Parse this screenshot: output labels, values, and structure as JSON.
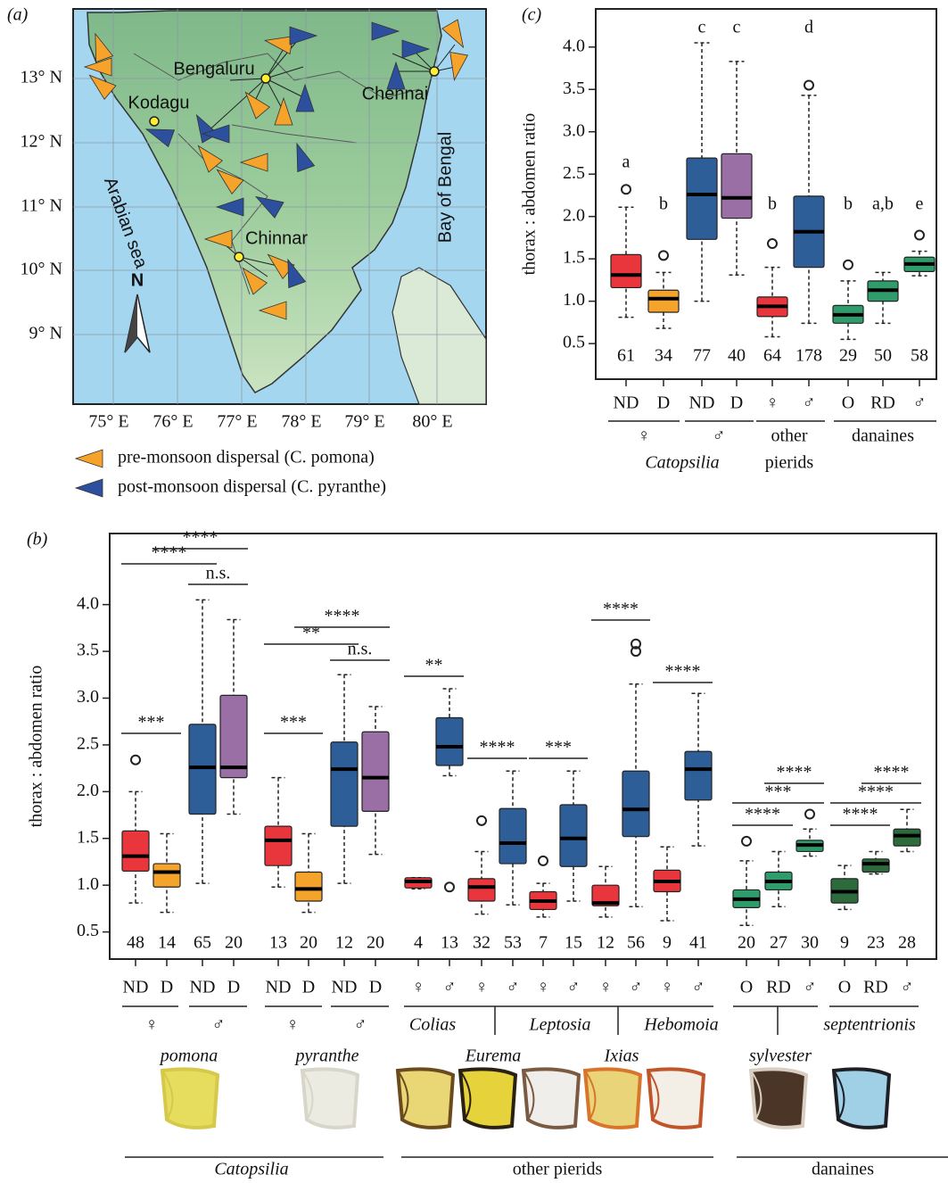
{
  "map": {
    "panel": "(a)",
    "places": [
      "Bengaluru",
      "Kodagu",
      "Chennai",
      "Chinnar"
    ],
    "seas": [
      "Arabian sea",
      "Bay of Bengal"
    ],
    "north": "N",
    "lat_labels": [
      "13° N",
      "12° N",
      "11° N",
      "10° N",
      "9° N"
    ],
    "lon_labels": [
      "75° E",
      "76° E",
      "77° E",
      "78° E",
      "79° E",
      "80° E"
    ],
    "legend": [
      {
        "label": "pre-monsoon dispersal (C. pomona)",
        "color": "#f5a32a"
      },
      {
        "label": "post-monsoon dispersal (C. pyranthe)",
        "color": "#2c4f9e"
      }
    ]
  },
  "chart_data": [
    {
      "type": "box",
      "panel": "(c)",
      "ylabel": "thorax : abdomen ratio",
      "ylim": [
        0.08,
        4.45
      ],
      "yticks": [
        0.5,
        {
          "value": 1,
          "label": "1.0"
        },
        1.5,
        {
          "value": 2,
          "label": "2.0"
        },
        2.5,
        {
          "value": 3,
          "label": "3.0"
        },
        3.5,
        {
          "value": 4,
          "label": "4.0"
        }
      ],
      "categories": [
        "ND",
        "D",
        "ND",
        "D",
        "♀",
        "♂",
        "O",
        "RD",
        "♂"
      ],
      "colors": [
        "#e8363c",
        "#f4a42a",
        "#2e5e98",
        "#9a6fa6",
        "#e8363c",
        "#2e5e98",
        "#2f9c6b",
        "#2f9c6b",
        "#2f9c6b"
      ],
      "min": [
        0.81,
        0.68,
        1.0,
        1.31,
        0.58,
        0.74,
        0.55,
        0.74,
        1.3
      ],
      "q1": [
        1.16,
        0.87,
        1.73,
        1.98,
        0.82,
        1.4,
        0.74,
        1.0,
        1.35
      ],
      "median": [
        1.31,
        1.03,
        2.26,
        2.22,
        0.94,
        1.82,
        0.84,
        1.13,
        1.44
      ],
      "q3": [
        1.55,
        1.13,
        2.69,
        2.74,
        1.05,
        2.24,
        0.95,
        1.24,
        1.52
      ],
      "max": [
        2.11,
        1.34,
        4.05,
        3.83,
        1.4,
        3.43,
        1.24,
        1.34,
        1.59
      ],
      "outliers": [
        [
          2.32
        ],
        [
          1.54
        ],
        [],
        [],
        [
          1.68
        ],
        [
          3.55
        ],
        [
          1.43
        ],
        [],
        [
          1.78
        ]
      ],
      "n": [
        61,
        34,
        77,
        40,
        64,
        178,
        29,
        50,
        58
      ],
      "letters": [
        "a",
        "b",
        "c",
        "c",
        "b",
        "d",
        "b",
        "a,b",
        "e"
      ],
      "group_labels": [
        [
          "♀"
        ],
        [
          "♂"
        ],
        [
          "other",
          "pierids"
        ],
        [
          "danaines"
        ]
      ],
      "genus": "Catopsilia"
    },
    {
      "type": "box",
      "panel": "(b)",
      "ylabel": "thorax : abdomen ratio",
      "ylim": [
        0.21,
        4.76
      ],
      "yticks": [
        0.5,
        {
          "value": 1,
          "label": "1.0"
        },
        1.5,
        {
          "value": 2,
          "label": "2.0"
        },
        2.5,
        {
          "value": 3,
          "label": "3.0"
        },
        3.5,
        {
          "value": 4,
          "label": "4.0"
        }
      ],
      "categories": [
        "ND",
        "D",
        "ND",
        "D",
        "ND",
        "D",
        "ND",
        "D",
        "♀",
        "♂",
        "♀",
        "♂",
        "♀",
        "♂",
        "♀",
        "♂",
        "♀",
        "♂",
        "O",
        "RD",
        "♂",
        "O",
        "RD",
        "♂"
      ],
      "colors": [
        "#e8363c",
        "#f4a42a",
        "#2e5e98",
        "#9a6fa6",
        "#e8363c",
        "#f4a42a",
        "#2e5e98",
        "#9a6fa6",
        "#e8363c",
        "#2e5e98",
        "#e8363c",
        "#2e5e98",
        "#e8363c",
        "#2e5e98",
        "#e8363c",
        "#2e5e98",
        "#e8363c",
        "#2e5e98",
        "#2f9c6b",
        "#2f9c6b",
        "#2f9c6b",
        "#2d6b3d",
        "#2d6b3d",
        "#2d6b3d"
      ],
      "min": [
        0.81,
        0.71,
        1.02,
        1.76,
        0.98,
        0.71,
        1.02,
        1.33,
        0.96,
        2.17,
        0.69,
        0.79,
        0.66,
        0.83,
        0.66,
        0.77,
        0.62,
        1.42,
        0.57,
        0.77,
        1.31,
        0.74,
        1.12,
        1.36
      ],
      "q1": [
        1.15,
        0.98,
        1.76,
        2.15,
        1.21,
        0.83,
        1.63,
        1.79,
        0.97,
        2.28,
        0.83,
        1.23,
        0.74,
        1.2,
        0.78,
        1.52,
        0.93,
        1.91,
        0.76,
        0.95,
        1.36,
        0.81,
        1.14,
        1.42
      ],
      "median": [
        1.31,
        1.14,
        2.26,
        2.26,
        1.48,
        0.96,
        2.24,
        2.15,
        1.04,
        2.48,
        0.98,
        1.45,
        0.83,
        1.5,
        0.81,
        1.81,
        1.04,
        2.24,
        0.85,
        1.04,
        1.43,
        0.93,
        1.23,
        1.53
      ],
      "q3": [
        1.58,
        1.23,
        2.72,
        3.03,
        1.63,
        1.14,
        2.53,
        2.64,
        1.08,
        2.79,
        1.07,
        1.82,
        0.93,
        1.86,
        1.0,
        2.22,
        1.16,
        2.43,
        0.95,
        1.14,
        1.48,
        1.07,
        1.28,
        1.6
      ],
      "max": [
        2.0,
        1.55,
        4.05,
        3.84,
        2.15,
        1.55,
        3.25,
        2.91,
        1.08,
        3.1,
        1.36,
        2.22,
        1.02,
        2.22,
        1.2,
        3.15,
        1.41,
        3.05,
        1.26,
        1.36,
        1.6,
        1.21,
        1.36,
        1.81
      ],
      "outliers": [
        [
          2.34
        ],
        [],
        [],
        [],
        [],
        [],
        [],
        [],
        [],
        [
          0.98
        ],
        [
          1.69
        ],
        [],
        [
          1.26
        ],
        [],
        [],
        [
          3.58,
          3.5
        ],
        [],
        [],
        [
          1.47
        ],
        [],
        [
          1.76
        ],
        [],
        [],
        []
      ],
      "n": [
        48,
        14,
        65,
        20,
        13,
        20,
        12,
        20,
        4,
        13,
        32,
        53,
        7,
        15,
        12,
        56,
        9,
        41,
        20,
        27,
        30,
        9,
        23,
        28
      ],
      "significance": [
        "***",
        "****",
        "****",
        "n.s.",
        "***",
        "**",
        "****",
        "n.s.",
        "**",
        "****",
        "***",
        "****",
        "****",
        "****",
        "***",
        "****",
        "****",
        "****",
        "****"
      ],
      "row2": [
        "♀",
        "♂",
        "♀",
        "♂",
        "Colias",
        "Leptosia",
        "Hebomoia",
        "septentrionis"
      ],
      "row3": [
        "pomona",
        "pyranthe",
        "Eurema",
        "Ixias",
        "sylvester"
      ],
      "families": [
        "Catopsilia",
        "other pierids",
        "danaines"
      ]
    }
  ]
}
